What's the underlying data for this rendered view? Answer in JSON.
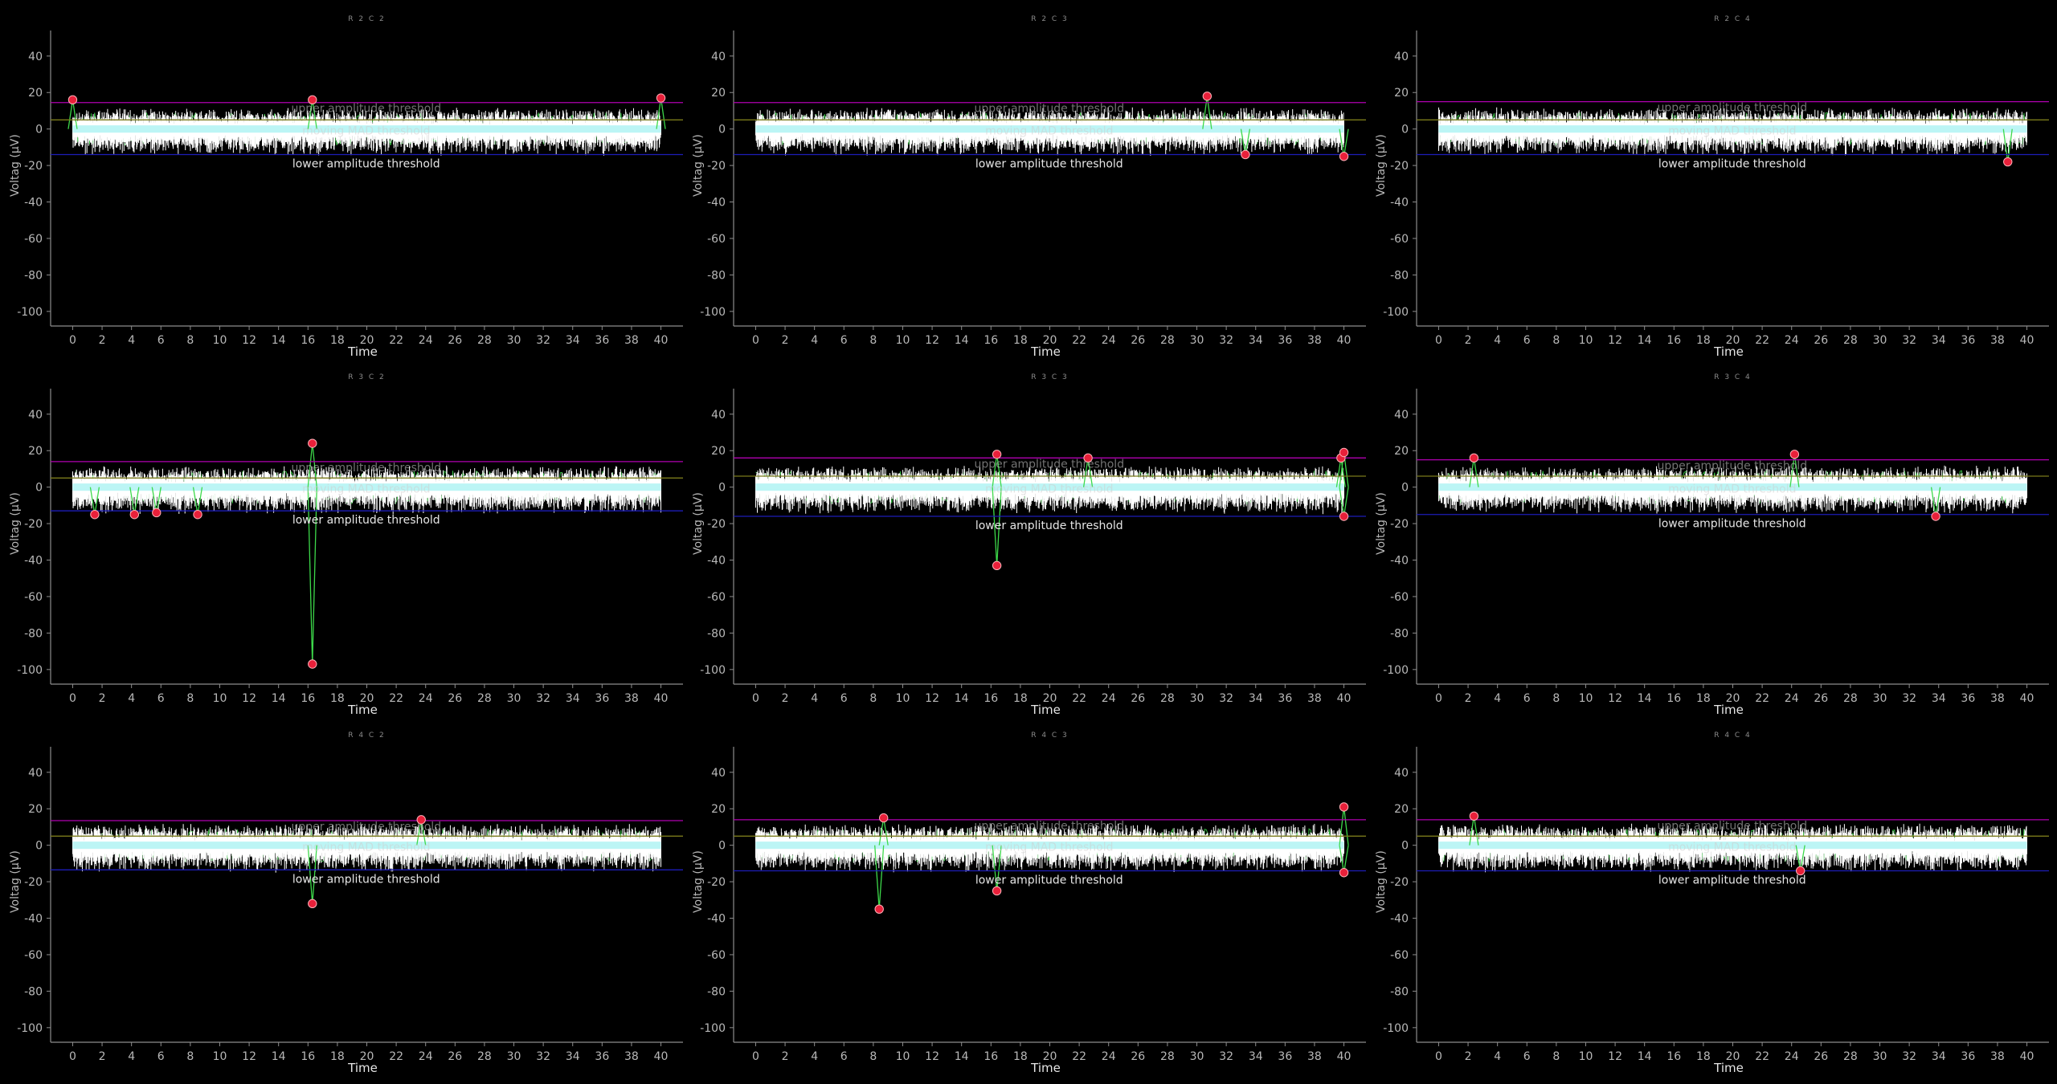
{
  "colors": {
    "background": "#000000",
    "axis": "#8c8c8c",
    "text": "#b8b8b8",
    "signal": "#ffffff",
    "filtered": "#3dd94a",
    "mad": "#3fe3e3",
    "upper_threshold": "#b000b0",
    "lower_threshold": "#1d1db8",
    "baseline": "#7a7a1a",
    "spike": "#e8203a"
  },
  "chart_data": [
    {
      "type": "line",
      "title": "R2C2",
      "xlabel": "Time",
      "ylabel": "Voltag (µV)",
      "xlim": [
        -1.5,
        41.5
      ],
      "ylim": [
        -108,
        54
      ],
      "x_ticks": [
        "0",
        "2",
        "4",
        "6",
        "8",
        "10",
        "12",
        "14",
        "16",
        "18",
        "20",
        "22",
        "24",
        "26",
        "28",
        "30",
        "32",
        "34",
        "36",
        "38",
        "40"
      ],
      "y_ticks": [
        "40",
        "20",
        "0",
        "-20",
        "-40",
        "-60",
        "-80",
        "-100"
      ],
      "annotations": [
        "upper amplitude threshold",
        "moving MAD threshold",
        "lower amplitude threshold"
      ],
      "upper_threshold": 14.5,
      "lower_threshold": -14,
      "baseline": 5,
      "spikes": [
        {
          "x": 0,
          "y": 16
        },
        {
          "x": 16.3,
          "y": 16
        },
        {
          "x": 40,
          "y": 17
        }
      ]
    },
    {
      "type": "line",
      "title": "R2C3",
      "xlabel": "Time",
      "ylabel": "Voltag (µV)",
      "xlim": [
        -1.5,
        41.5
      ],
      "ylim": [
        -108,
        54
      ],
      "x_ticks": [
        "0",
        "2",
        "4",
        "6",
        "8",
        "10",
        "12",
        "14",
        "16",
        "18",
        "20",
        "22",
        "24",
        "26",
        "28",
        "30",
        "32",
        "34",
        "36",
        "38",
        "40"
      ],
      "y_ticks": [
        "40",
        "20",
        "0",
        "-20",
        "-40",
        "-60",
        "-80",
        "-100"
      ],
      "annotations": [
        "upper amplitude threshold",
        "moving MAD threshold",
        "lower amplitude threshold"
      ],
      "upper_threshold": 14.5,
      "lower_threshold": -14,
      "baseline": 5,
      "spikes": [
        {
          "x": 30.7,
          "y": 18
        },
        {
          "x": 33.3,
          "y": -14
        },
        {
          "x": 40,
          "y": -15
        }
      ]
    },
    {
      "type": "line",
      "title": "R2C4",
      "xlabel": "Time",
      "ylabel": "Voltag (µV)",
      "xlim": [
        -1.5,
        41.5
      ],
      "ylim": [
        -108,
        54
      ],
      "x_ticks": [
        "0",
        "2",
        "4",
        "6",
        "8",
        "10",
        "12",
        "14",
        "16",
        "18",
        "20",
        "22",
        "24",
        "26",
        "28",
        "30",
        "32",
        "34",
        "36",
        "38",
        "40"
      ],
      "y_ticks": [
        "40",
        "20",
        "0",
        "-20",
        "-40",
        "-60",
        "-80",
        "-100"
      ],
      "annotations": [
        "upper amplitude threshold",
        "moving MAD threshold",
        "lower amplitude threshold"
      ],
      "upper_threshold": 15,
      "lower_threshold": -14,
      "baseline": 5,
      "spikes": [
        {
          "x": 38.7,
          "y": -18
        }
      ]
    },
    {
      "type": "line",
      "title": "R3C2",
      "xlabel": "Time",
      "ylabel": "Voltag (µV)",
      "xlim": [
        -1.5,
        41.5
      ],
      "ylim": [
        -108,
        54
      ],
      "x_ticks": [
        "0",
        "2",
        "4",
        "6",
        "8",
        "10",
        "12",
        "14",
        "16",
        "18",
        "20",
        "22",
        "24",
        "26",
        "28",
        "30",
        "32",
        "34",
        "36",
        "38",
        "40"
      ],
      "y_ticks": [
        "40",
        "20",
        "0",
        "-20",
        "-40",
        "-60",
        "-80",
        "-100"
      ],
      "annotations": [
        "upper amplitude threshold",
        "moving MAD threshold",
        "lower amplitude threshold"
      ],
      "upper_threshold": 14,
      "lower_threshold": -13,
      "baseline": 5,
      "spikes": [
        {
          "x": 1.5,
          "y": -15
        },
        {
          "x": 4.2,
          "y": -15
        },
        {
          "x": 5.7,
          "y": -14
        },
        {
          "x": 8.5,
          "y": -15
        },
        {
          "x": 16.3,
          "y": 24
        },
        {
          "x": 16.3,
          "y": -97
        }
      ]
    },
    {
      "type": "line",
      "title": "R3C3",
      "xlabel": "Time",
      "ylabel": "Voltag (µV)",
      "xlim": [
        -1.5,
        41.5
      ],
      "ylim": [
        -108,
        54
      ],
      "x_ticks": [
        "0",
        "2",
        "4",
        "6",
        "8",
        "10",
        "12",
        "14",
        "16",
        "18",
        "20",
        "22",
        "24",
        "26",
        "28",
        "30",
        "32",
        "34",
        "36",
        "38",
        "40"
      ],
      "y_ticks": [
        "40",
        "20",
        "0",
        "-20",
        "-40",
        "-60",
        "-80",
        "-100"
      ],
      "annotations": [
        "upper amplitude threshold",
        "moving MAD threshold",
        "lower amplitude threshold"
      ],
      "upper_threshold": 16,
      "lower_threshold": -16,
      "baseline": 6,
      "spikes": [
        {
          "x": 16.4,
          "y": 18
        },
        {
          "x": 16.4,
          "y": -43
        },
        {
          "x": 22.6,
          "y": 16
        },
        {
          "x": 39.8,
          "y": 16
        },
        {
          "x": 40,
          "y": 19
        },
        {
          "x": 40,
          "y": -16
        }
      ]
    },
    {
      "type": "line",
      "title": "R3C4",
      "xlabel": "Time",
      "ylabel": "Voltag (µV)",
      "xlim": [
        -1.5,
        41.5
      ],
      "ylim": [
        -108,
        54
      ],
      "x_ticks": [
        "0",
        "2",
        "4",
        "6",
        "8",
        "10",
        "12",
        "14",
        "16",
        "18",
        "20",
        "22",
        "24",
        "26",
        "28",
        "30",
        "32",
        "34",
        "36",
        "38",
        "40"
      ],
      "y_ticks": [
        "40",
        "20",
        "0",
        "-20",
        "-40",
        "-60",
        "-80",
        "-100"
      ],
      "annotations": [
        "upper amplitude threshold",
        "moving MAD threshold",
        "lower amplitude threshold"
      ],
      "upper_threshold": 15,
      "lower_threshold": -15,
      "baseline": 6,
      "spikes": [
        {
          "x": 2.4,
          "y": 16
        },
        {
          "x": 24.2,
          "y": 18
        },
        {
          "x": 33.8,
          "y": -16
        }
      ]
    },
    {
      "type": "line",
      "title": "R4C2",
      "xlabel": "Time",
      "ylabel": "Voltag (µV)",
      "xlim": [
        -1.5,
        41.5
      ],
      "ylim": [
        -108,
        54
      ],
      "x_ticks": [
        "0",
        "2",
        "4",
        "6",
        "8",
        "10",
        "12",
        "14",
        "16",
        "18",
        "20",
        "22",
        "24",
        "26",
        "28",
        "30",
        "32",
        "34",
        "36",
        "38",
        "40"
      ],
      "y_ticks": [
        "40",
        "20",
        "0",
        "-20",
        "-40",
        "-60",
        "-80",
        "-100"
      ],
      "annotations": [
        "upper amplitude threshold",
        "moving MAD threshold",
        "lower amplitude threshold"
      ],
      "upper_threshold": 13.5,
      "lower_threshold": -13.5,
      "baseline": 5,
      "spikes": [
        {
          "x": 16.3,
          "y": -32
        },
        {
          "x": 23.7,
          "y": 14
        }
      ]
    },
    {
      "type": "line",
      "title": "R4C3",
      "xlabel": "Time",
      "ylabel": "Voltag (µV)",
      "xlim": [
        -1.5,
        41.5
      ],
      "ylim": [
        -108,
        54
      ],
      "x_ticks": [
        "0",
        "2",
        "4",
        "6",
        "8",
        "10",
        "12",
        "14",
        "16",
        "18",
        "20",
        "22",
        "24",
        "26",
        "28",
        "30",
        "32",
        "34",
        "36",
        "38",
        "40"
      ],
      "y_ticks": [
        "40",
        "20",
        "0",
        "-20",
        "-40",
        "-60",
        "-80",
        "-100"
      ],
      "annotations": [
        "upper amplitude threshold",
        "moving MAD threshold",
        "lower amplitude threshold"
      ],
      "upper_threshold": 14,
      "lower_threshold": -14,
      "baseline": 5,
      "spikes": [
        {
          "x": 8.4,
          "y": -35
        },
        {
          "x": 8.7,
          "y": 15
        },
        {
          "x": 16.4,
          "y": -25
        },
        {
          "x": 40,
          "y": 21
        },
        {
          "x": 40,
          "y": -15
        }
      ]
    },
    {
      "type": "line",
      "title": "R4C4",
      "xlabel": "Time",
      "ylabel": "Voltag (µV)",
      "xlim": [
        -1.5,
        41.5
      ],
      "ylim": [
        -108,
        54
      ],
      "x_ticks": [
        "0",
        "2",
        "4",
        "6",
        "8",
        "10",
        "12",
        "14",
        "16",
        "18",
        "20",
        "22",
        "24",
        "26",
        "28",
        "30",
        "32",
        "34",
        "36",
        "38",
        "40"
      ],
      "y_ticks": [
        "40",
        "20",
        "0",
        "-20",
        "-40",
        "-60",
        "-80",
        "-100"
      ],
      "annotations": [
        "upper amplitude threshold",
        "moving MAD threshold",
        "lower amplitude threshold"
      ],
      "upper_threshold": 14,
      "lower_threshold": -14,
      "baseline": 5,
      "spikes": [
        {
          "x": 2.4,
          "y": 16
        },
        {
          "x": 24.6,
          "y": -14
        }
      ]
    }
  ]
}
